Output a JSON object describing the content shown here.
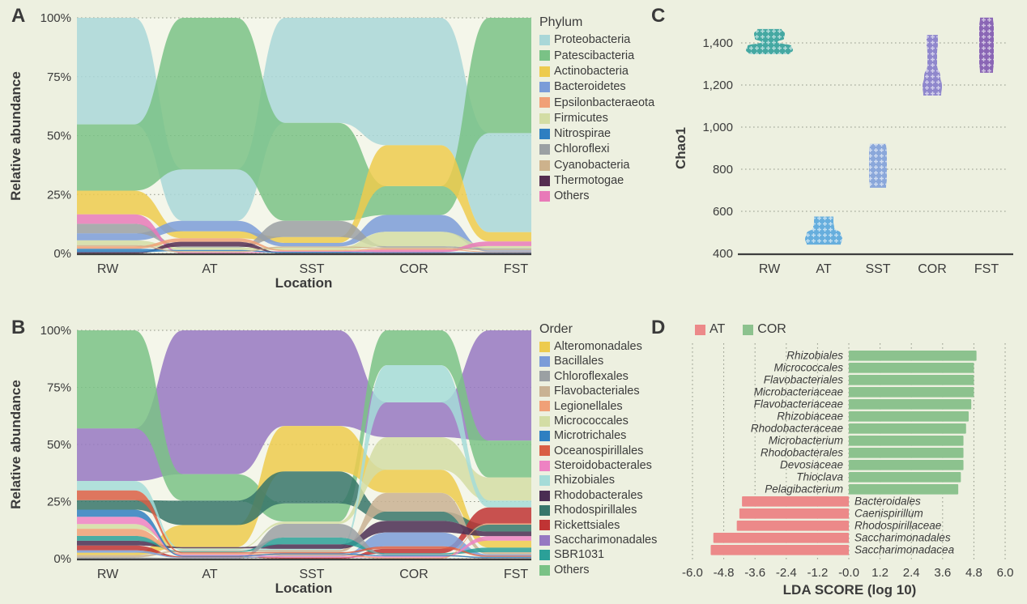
{
  "panels": {
    "a": {
      "letter": "A",
      "y_label": "Relative abundance",
      "x_label": "Location",
      "legend_title": "Phylum"
    },
    "b": {
      "letter": "B",
      "y_label": "Relative abundance",
      "x_label": "Location",
      "legend_title": "Order"
    },
    "c": {
      "letter": "C",
      "y_label": "Chao1"
    },
    "d": {
      "letter": "D",
      "x_label": "LDA SCORE (log 10)"
    }
  },
  "chart_data": [
    {
      "id": "A",
      "type": "area",
      "subtype": "alluvial",
      "title": "Relative abundance by Phylum",
      "ylabel": "Relative abundance",
      "xlabel": "Location",
      "ylim": [
        0,
        100
      ],
      "grid": "dotted-horizontal",
      "categories": [
        "RW",
        "AT",
        "SST",
        "COR",
        "FST"
      ],
      "y_ticks": [
        "0%",
        "25%",
        "50%",
        "75%",
        "100%"
      ],
      "legend_title": "Phylum",
      "legend_position": "right",
      "series": [
        {
          "name": "Proteobacteria",
          "color": "#a9d7d8",
          "values": [
            45,
            22,
            45,
            53,
            43
          ]
        },
        {
          "name": "Patescibacteria",
          "color": "#7ac286",
          "values": [
            28,
            65,
            42,
            12,
            50
          ]
        },
        {
          "name": "Actinobacteria",
          "color": "#edcb4e",
          "values": [
            10,
            3,
            2.5,
            17,
            4
          ]
        },
        {
          "name": "Bacteroidetes",
          "color": "#7b9cd8",
          "values": [
            3,
            4.5,
            1.5,
            7,
            0.5
          ]
        },
        {
          "name": "Epsilonbacteraeota",
          "color": "#f0a077",
          "values": [
            1,
            1.5,
            0.5,
            0.5,
            0.3
          ]
        },
        {
          "name": "Firmicutes",
          "color": "#d3dda4",
          "values": [
            2,
            1,
            1,
            6,
            1
          ]
        },
        {
          "name": "Nitrospirae",
          "color": "#2f7fc1",
          "values": [
            1.5,
            0.5,
            0.5,
            0.3,
            0.3
          ]
        },
        {
          "name": "Chloroflexi",
          "color": "#9ba0a3",
          "values": [
            4,
            0.5,
            7,
            0.5,
            0.4
          ]
        },
        {
          "name": "Cyanobacteria",
          "color": "#cdb28c",
          "values": [
            0.5,
            0.5,
            0.5,
            0.5,
            0.5
          ]
        },
        {
          "name": "Thermotogae",
          "color": "#552c50",
          "values": [
            0.5,
            2,
            0.2,
            0.2,
            0.2
          ]
        },
        {
          "name": "Others",
          "color": "#e87ab8",
          "values": [
            4,
            0.5,
            0.3,
            1,
            2
          ]
        }
      ],
      "stack_order_bottom_to_top": {
        "RW": [
          "Thermotogae",
          "Nitrospirae",
          "Epsilonbacteraeota",
          "Cyanobacteria",
          "Firmicutes",
          "Bacteroidetes",
          "Chloroflexi",
          "Others",
          "Actinobacteria",
          "Patescibacteria",
          "Proteobacteria"
        ],
        "AT": [
          "Others",
          "Cyanobacteria",
          "Nitrospirae",
          "Firmicutes",
          "Chloroflexi",
          "Thermotogae",
          "Epsilonbacteraeota",
          "Actinobacteria",
          "Bacteroidetes",
          "Proteobacteria",
          "Patescibacteria"
        ],
        "SST": [
          "Thermotogae",
          "Nitrospirae",
          "Others",
          "Epsilonbacteraeota",
          "Firmicutes",
          "Cyanobacteria",
          "Bacteroidetes",
          "Actinobacteria",
          "Chloroflexi",
          "Patescibacteria",
          "Proteobacteria"
        ],
        "COR": [
          "Thermotogae",
          "Nitrospirae",
          "Others",
          "Epsilonbacteraeota",
          "Cyanobacteria",
          "Chloroflexi",
          "Firmicutes",
          "Bacteroidetes",
          "Patescibacteria",
          "Actinobacteria",
          "Proteobacteria"
        ],
        "FST": [
          "Thermotogae",
          "Nitrospirae",
          "Epsilonbacteraeota",
          "Bacteroidetes",
          "Cyanobacteria",
          "Chloroflexi",
          "Firmicutes",
          "Others",
          "Actinobacteria",
          "Proteobacteria",
          "Patescibacteria"
        ]
      }
    },
    {
      "id": "B",
      "type": "area",
      "subtype": "alluvial",
      "title": "Relative abundance by Order",
      "ylabel": "Relative abundance",
      "xlabel": "Location",
      "ylim": [
        0,
        100
      ],
      "grid": "dotted-horizontal",
      "categories": [
        "RW",
        "AT",
        "SST",
        "COR",
        "FST"
      ],
      "y_ticks": [
        "0%",
        "25%",
        "50%",
        "75%",
        "100%"
      ],
      "legend_title": "Order",
      "legend_position": "right",
      "series": [
        {
          "name": "Alteromonadales",
          "color": "#edcb4e",
          "values": [
            1,
            10,
            20,
            10,
            3
          ]
        },
        {
          "name": "Bacillales",
          "color": "#7b9cd8",
          "values": [
            1,
            0.3,
            0.3,
            6,
            0.5
          ]
        },
        {
          "name": "Chloroflexales",
          "color": "#9ba0a3",
          "values": [
            0.5,
            0.3,
            6,
            0.3,
            0.3
          ]
        },
        {
          "name": "Flavobacteriales",
          "color": "#c9b293",
          "values": [
            1,
            0.5,
            1,
            8,
            1
          ]
        },
        {
          "name": "Legionellales",
          "color": "#f0a077",
          "values": [
            3,
            0.5,
            0.5,
            0.5,
            0.5
          ]
        },
        {
          "name": "Micrococcales",
          "color": "#d3dda4",
          "values": [
            2,
            0.5,
            1,
            14,
            10
          ]
        },
        {
          "name": "Microtrichales",
          "color": "#2f7fc1",
          "values": [
            3,
            0.5,
            0.5,
            0.5,
            0.5
          ]
        },
        {
          "name": "Oceanospirillales",
          "color": "#d95f45",
          "values": [
            4,
            0.5,
            0.5,
            1,
            0.5
          ]
        },
        {
          "name": "Steroidobacterales",
          "color": "#ee82c3",
          "values": [
            3,
            0.5,
            0.5,
            0.5,
            2
          ]
        },
        {
          "name": "Rhizobiales",
          "color": "#a5dcd8",
          "values": [
            4,
            0.5,
            0.5,
            16,
            3
          ]
        },
        {
          "name": "Rhodobacterales",
          "color": "#4a2d52",
          "values": [
            2,
            0.5,
            2,
            5,
            2
          ]
        },
        {
          "name": "Rhodospirillales",
          "color": "#37766a",
          "values": [
            4,
            11,
            14,
            4,
            3
          ]
        },
        {
          "name": "Rickettsiales",
          "color": "#c03434",
          "values": [
            2,
            0.3,
            0.5,
            2,
            7
          ]
        },
        {
          "name": "Saccharimonadales",
          "color": "#9678c2",
          "values": [
            22,
            65,
            42,
            15,
            48
          ]
        },
        {
          "name": "SBR1031",
          "color": "#2ba098",
          "values": [
            2,
            0.3,
            3,
            0.5,
            2
          ]
        },
        {
          "name": "Others",
          "color": "#7ac286",
          "values": [
            41,
            12,
            8,
            15,
            16
          ]
        }
      ],
      "stack_order_bottom_to_top": {
        "RW": [
          "Chloroflexales",
          "Flavobacteriales",
          "Alteromonadales",
          "Bacillales",
          "Rickettsiales",
          "Rhodobacterales",
          "SBR1031",
          "Legionellales",
          "Micrococcales",
          "Steroidobacterales",
          "Microtrichales",
          "Rhodospirillales",
          "Oceanospirillales",
          "Rhizobiales",
          "Saccharimonadales",
          "Others"
        ],
        "AT": [
          "Chloroflexales",
          "Bacillales",
          "Rickettsiales",
          "Microtrichales",
          "Steroidobacterales",
          "Legionellales",
          "Oceanospirillales",
          "SBR1031",
          "Flavobacteriales",
          "Rhizobiales",
          "Micrococcales",
          "Rhodobacterales",
          "Alteromonadales",
          "Rhodospirillales",
          "Others",
          "Saccharimonadales"
        ],
        "SST": [
          "Rickettsiales",
          "Steroidobacterales",
          "Bacillales",
          "Legionellales",
          "Microtrichales",
          "Oceanospirillales",
          "Flavobacteriales",
          "Rhizobiales",
          "Rhodobacterales",
          "SBR1031",
          "Chloroflexales",
          "Micrococcales",
          "Others",
          "Rhodospirillales",
          "Alteromonadales",
          "Saccharimonadales"
        ],
        "COR": [
          "Legionellales",
          "Steroidobacterales",
          "Microtrichales",
          "Chloroflexales",
          "SBR1031",
          "Rickettsiales",
          "Oceanospirillales",
          "Bacillales",
          "Rhodobacterales",
          "Rhodospirillales",
          "Flavobacteriales",
          "Alteromonadales",
          "Micrococcales",
          "Saccharimonadales",
          "Rhizobiales",
          "Others"
        ],
        "FST": [
          "Chloroflexales",
          "Microtrichales",
          "Oceanospirillales",
          "Bacillales",
          "Flavobacteriales",
          "SBR1031",
          "Alteromonadales",
          "Steroidobacterales",
          "Rhodobacterales",
          "Rhodospirillales",
          "Legionellales",
          "Rickettsiales",
          "Rhizobiales",
          "Micrococcales",
          "Others",
          "Saccharimonadales"
        ]
      }
    },
    {
      "id": "C",
      "type": "violin",
      "title": "Chao1 richness by Location",
      "ylabel": "Chao1",
      "ylim": [
        400,
        1550
      ],
      "grid": "dotted-horizontal",
      "categories": [
        "RW",
        "AT",
        "SST",
        "COR",
        "FST"
      ],
      "y_ticks": [
        "400",
        "600",
        "800",
        "1,000",
        "1,200",
        "1,400"
      ],
      "y_tick_values": [
        400,
        600,
        800,
        1000,
        1200,
        1400
      ],
      "series": [
        {
          "name": "RW",
          "color": "#44a8a2",
          "range": [
            1346,
            1466
          ],
          "profile": [
            [
              1346,
              25
            ],
            [
              1366,
              29
            ],
            [
              1386,
              27
            ],
            [
              1404,
              10
            ],
            [
              1420,
              18
            ],
            [
              1444,
              19
            ],
            [
              1466,
              15
            ]
          ]
        },
        {
          "name": "AT",
          "color": "#66aedd",
          "range": [
            442,
            575
          ],
          "profile": [
            [
              442,
              21
            ],
            [
              468,
              23
            ],
            [
              495,
              21
            ],
            [
              522,
              13
            ],
            [
              548,
              12
            ],
            [
              575,
              12
            ]
          ]
        },
        {
          "name": "SST",
          "color": "#8aa7da",
          "range": [
            712,
            920
          ],
          "profile": [
            [
              712,
              10
            ],
            [
              760,
              11
            ],
            [
              830,
              11
            ],
            [
              880,
              11
            ],
            [
              920,
              10
            ]
          ]
        },
        {
          "name": "COR",
          "color": "#8f87cc",
          "range": [
            1150,
            1438
          ],
          "profile": [
            [
              1150,
              11
            ],
            [
              1195,
              12
            ],
            [
              1240,
              10
            ],
            [
              1295,
              6
            ],
            [
              1350,
              6
            ],
            [
              1400,
              7
            ],
            [
              1438,
              7
            ]
          ]
        },
        {
          "name": "FST",
          "color": "#8a66b5",
          "range": [
            1258,
            1520
          ],
          "profile": [
            [
              1258,
              8
            ],
            [
              1310,
              9
            ],
            [
              1370,
              9
            ],
            [
              1430,
              9
            ],
            [
              1475,
              9
            ],
            [
              1520,
              8
            ]
          ]
        }
      ]
    },
    {
      "id": "D",
      "type": "bar",
      "subtype": "horizontal",
      "title": "LEfSe LDA scores AT vs COR",
      "xlabel": "LDA SCORE (log 10)",
      "xlim": [
        -6,
        6
      ],
      "grid": "dotted-vertical",
      "x_ticks": [
        "-6.0",
        "-4.8",
        "-3.6",
        "-2.4",
        "-1.2",
        "-0.0",
        "1.2",
        "2.4",
        "3.6",
        "4.8",
        "6.0"
      ],
      "x_tick_values": [
        -6,
        -4.8,
        -3.6,
        -2.4,
        -1.2,
        0,
        1.2,
        2.4,
        3.6,
        4.8,
        6
      ],
      "legend": [
        {
          "name": "AT",
          "color": "#ec8989"
        },
        {
          "name": "COR",
          "color": "#8cc28e"
        }
      ],
      "bars": [
        {
          "name": "Rhizobiales",
          "value": 4.9,
          "group": "COR"
        },
        {
          "name": "Micrococcales",
          "value": 4.8,
          "group": "COR"
        },
        {
          "name": "Flavobacteriales",
          "value": 4.8,
          "group": "COR"
        },
        {
          "name": "Microbacteriaceae",
          "value": 4.8,
          "group": "COR"
        },
        {
          "name": "Flavobacteriaceae",
          "value": 4.7,
          "group": "COR"
        },
        {
          "name": "Rhizobiaceae",
          "value": 4.6,
          "group": "COR"
        },
        {
          "name": "Rhodobacteraceae",
          "value": 4.5,
          "group": "COR"
        },
        {
          "name": "Microbacterium",
          "value": 4.4,
          "group": "COR"
        },
        {
          "name": "Rhodobacterales",
          "value": 4.4,
          "group": "COR"
        },
        {
          "name": "Devosiaceae",
          "value": 4.4,
          "group": "COR"
        },
        {
          "name": "Thioclava",
          "value": 4.3,
          "group": "COR"
        },
        {
          "name": "Pelagibacterium",
          "value": 4.2,
          "group": "COR"
        },
        {
          "name": "Bacteroidales",
          "value": -4.1,
          "group": "AT"
        },
        {
          "name": "Caenispirillum",
          "value": -4.2,
          "group": "AT"
        },
        {
          "name": "Rhodospirillaceae",
          "value": -4.3,
          "group": "AT"
        },
        {
          "name": "Saccharimonadales",
          "value": -5.2,
          "group": "AT"
        },
        {
          "name": "Saccharimonadacea",
          "value": -5.3,
          "group": "AT"
        }
      ]
    }
  ]
}
